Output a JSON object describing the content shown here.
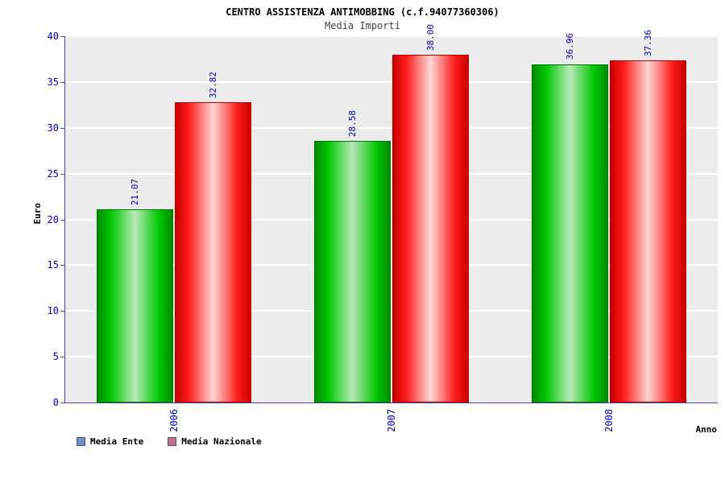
{
  "title": "CENTRO ASSISTENZA ANTIMOBBING (c.f.94077360306)",
  "subtitle": "Media Importi",
  "chart_data": {
    "type": "bar",
    "title": "CENTRO ASSISTENZA ANTIMOBBING (c.f.94077360306)",
    "subtitle": "Media Importi",
    "categories": [
      "2006",
      "2007",
      "2008"
    ],
    "series": [
      {
        "name": "Media Ente",
        "values": [
          21.07,
          28.58,
          36.96
        ],
        "labels": [
          "21.07",
          "28.58",
          "36.96"
        ],
        "gradient": [
          "#008a00 0%",
          "#00c800 18%",
          "#b9e8b9 50%",
          "#00c800 82%",
          "#008a00 100%"
        ],
        "edge": "#007700",
        "legend_color": "#6e8fc9"
      },
      {
        "name": "Media Nazionale",
        "values": [
          32.82,
          38.0,
          37.36
        ],
        "labels": [
          "32.82",
          "38.00",
          "37.36"
        ],
        "gradient": [
          "#c80000 0%",
          "#ff1e1e 18%",
          "#ffd7d7 50%",
          "#ff1e1e 82%",
          "#c80000 100%"
        ],
        "edge": "#bb0000",
        "legend_color": "#c96e8f"
      }
    ],
    "xlabel": "Anno",
    "ylabel": "Euro",
    "ylim": [
      0,
      40
    ],
    "yticks": [
      0,
      5,
      10,
      15,
      20,
      25,
      30,
      35,
      40
    ],
    "grid": true,
    "legend_position": "bottom-left",
    "plot_bg": "#ececec",
    "tick_label_color": "#0000cc",
    "value_label_color": "#0000bb"
  }
}
